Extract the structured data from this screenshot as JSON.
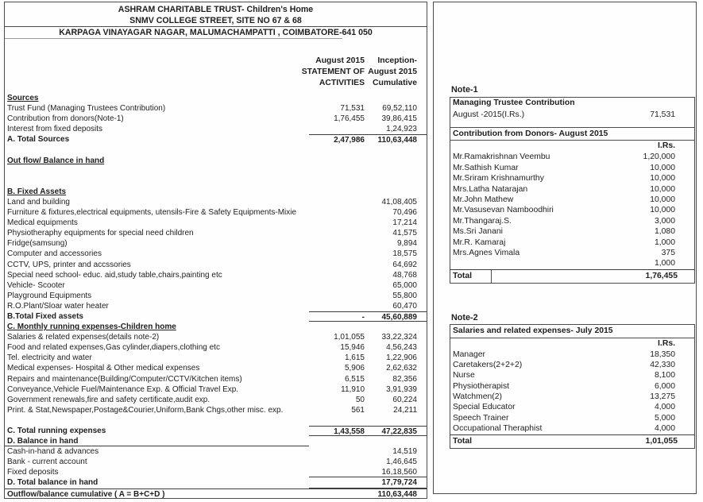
{
  "header": {
    "line1": "ASHRAM CHARITABLE TRUST-  Children's Home",
    "line2": "SNMV COLLEGE STREET, SITE NO 67 & 68",
    "line3": "KARPAGA VINAYAGAR NAGAR, MALUMACHAMPATTI , COIMBATORE-641 050"
  },
  "columns": {
    "col1_line1": "August 2015",
    "col1_line2": "STATEMENT OF",
    "col1_line3": "ACTIVITIES",
    "col2_line1": "Inception-",
    "col2_line2": "August  2015",
    "col2_line3": "Cumulative"
  },
  "statement": {
    "rows": [
      {
        "label": "Sources",
        "style": "section"
      },
      {
        "label": "Trust Fund (Managing Trustees Contribution)",
        "c1": "71,531",
        "c2": "69,52,110"
      },
      {
        "label": "Contribution from donors(Note-1)",
        "c1": "1,76,455",
        "c2": "39,86,415"
      },
      {
        "label": "Interest from fixed deposits",
        "c2": "1,24,923"
      },
      {
        "label": "A. Total Sources",
        "style": "bold rule-top",
        "c1": "2,47,986",
        "c2": "110,63,448"
      },
      {
        "label": ""
      },
      {
        "label": "Out flow/ Balance in hand",
        "style": "section"
      },
      {
        "label": ""
      },
      {
        "label": ""
      },
      {
        "label": "B. Fixed Assets",
        "style": "section"
      },
      {
        "label": "Land and building",
        "c2": "41,08,405"
      },
      {
        "label": "Furniture & fixtures,electrical equipments, utensils-Fire & Safety Equipments-Mixie",
        "c2": "70,496"
      },
      {
        "label": "Medical equipments",
        "c2": "17,214"
      },
      {
        "label": "Physiotheraphy equipments for special need children",
        "c2": "41,575"
      },
      {
        "label": "Fridge(samsung)",
        "c2": "9,894"
      },
      {
        "label": "Computer and accessories",
        "c2": "18,575"
      },
      {
        "label": "CCTV, UPS, printer and accssories",
        "c2": "64,692"
      },
      {
        "label": "Special need school- educ. aid,study table,chairs,painting etc",
        "c2": "48,768"
      },
      {
        "label": "Vehicle- Scooter",
        "c2": "65,000"
      },
      {
        "label": "Playground Equipments",
        "c2": "55,800"
      },
      {
        "label": "R.O.Plant/Sloar water heater",
        "c2": "60,470"
      },
      {
        "label": "B.Total Fixed assets",
        "style": "bold rule-top rule-bottom",
        "c1": "-",
        "c2": "45,60,889"
      },
      {
        "label": "C. Monthly running expenses-Children home",
        "style": "section"
      },
      {
        "label": "Salaries & related expenses(details note-2)",
        "c1": "1,01,055",
        "c2": "33,22,324"
      },
      {
        "label": "Food and related expenses,Gas cylinder,diapers,clothing etc",
        "c1": "15,946",
        "c2": "4,56,243"
      },
      {
        "label": "Tel. electricity and water",
        "c1": "1,615",
        "c2": "1,22,906"
      },
      {
        "label": "Medical expenses- Hospital & Other medical expenses",
        "c1": "5,906",
        "c2": "2,62,632"
      },
      {
        "label": "Repairs and maintenance(Building/Computer/CCTV/Kitchen items)",
        "c1": "6,515",
        "c2": "82,356"
      },
      {
        "label": "Conveyance,Vehicle Fuel/Maintenance Exp. & Official Travel Exp.",
        "c1": "11,910",
        "c2": "3,91,939"
      },
      {
        "label": "Government renewals,fire and safety certificate,audit exp.",
        "c1": "50",
        "c2": "60,224"
      },
      {
        "label": "Print. & Stat,Newspaper,Postage&Courier,Uniform,Bank Chgs,other misc. exp.",
        "c1": "561",
        "c2": "24,211"
      },
      {
        "label": ""
      },
      {
        "label": "C. Total running expenses",
        "style": "bold rule-top rule-bottom",
        "c1": "1,43,558",
        "c2": "47,22,835"
      },
      {
        "label": "D. Balance in hand",
        "style": "bold label-underline"
      },
      {
        "label": "Cash-in-hand & advances",
        "c2": "14,519"
      },
      {
        "label": "Bank - current account",
        "c2": "1,46,645"
      },
      {
        "label": "Fixed deposits",
        "style": "rule-bottom",
        "c2": "16,18,560"
      },
      {
        "label": "D. Total balance in hand",
        "style": "bold rule-bottom",
        "c2": "17,79,724"
      },
      {
        "label": "Outflow/balance cumulative ( A = B+C+D )",
        "style": "bold row-top",
        "c2": "110,63,448"
      }
    ]
  },
  "note1": {
    "title": "Note-1",
    "section1_title": "Managing Trustee Contribution",
    "section1_label": "August -2015(I.Rs.)",
    "section1_value": "71,531",
    "section2_title": "Contribution from Donors- August 2015",
    "currency_header": "I.Rs.",
    "donors": [
      {
        "name": "Mr.Ramakrishnan Veembu",
        "amount": "1,20,000"
      },
      {
        "name": "Mr.Sathish Kumar",
        "amount": "10,000"
      },
      {
        "name": "Mr.Sriram Krishnamurthy",
        "amount": "10,000"
      },
      {
        "name": "Mrs.Latha Natarajan",
        "amount": "10,000"
      },
      {
        "name": "Mr.John Mathew",
        "amount": "10,000"
      },
      {
        "name": "Mr.Vasusevan Namboodhiri",
        "amount": "10,000"
      },
      {
        "name": "Mr.Thangaraj.S.",
        "amount": "3,000"
      },
      {
        "name": "Ms.Sri Janani",
        "amount": "1,080"
      },
      {
        "name": "Mr.R. Kamaraj",
        "amount": "1,000"
      },
      {
        "name": "Mrs.Agnes Vimala",
        "amount": "375"
      },
      {
        "name": "",
        "amount": "1,000"
      }
    ],
    "total_label": "Total",
    "total_value": "1,76,455"
  },
  "note2": {
    "title": "Note-2",
    "section_title": "Salaries and related expenses- July 2015",
    "currency_header": "I.Rs.",
    "rows": [
      {
        "name": "Manager",
        "amount": "18,350"
      },
      {
        "name": "Caretakers(2+2+2)",
        "amount": "42,330"
      },
      {
        "name": "Nurse",
        "amount": "8,100"
      },
      {
        "name": "Physiotherapist",
        "amount": "6,000"
      },
      {
        "name": "Watchmen(2)",
        "amount": "13,275"
      },
      {
        "name": "Special Educator",
        "amount": "4,000"
      },
      {
        "name": "Speech Trainer",
        "amount": "5,000"
      },
      {
        "name": "Occupational Theraphist",
        "amount": "4,000"
      }
    ],
    "total_label": "Total",
    "total_value": "1,01,055"
  }
}
